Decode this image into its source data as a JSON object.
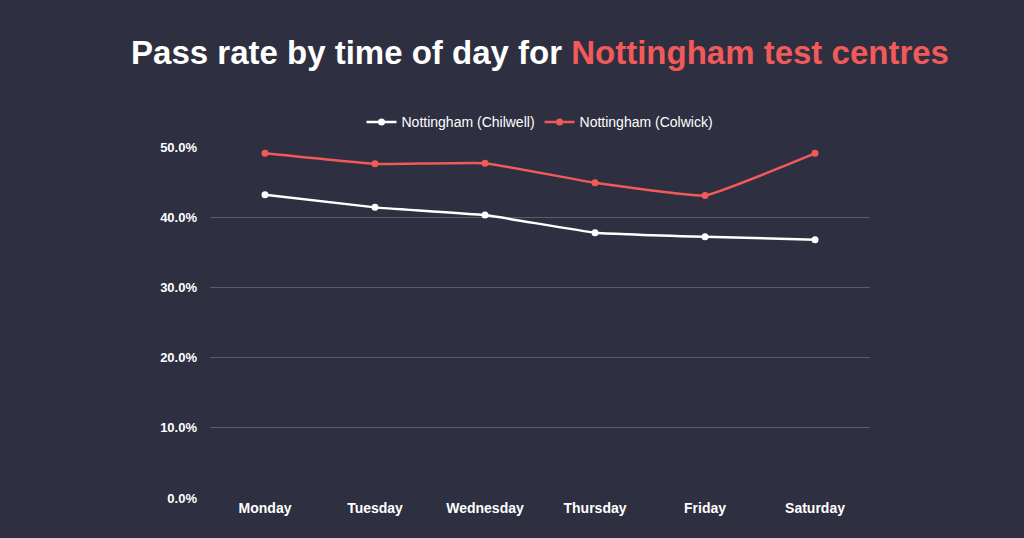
{
  "chart_data": {
    "type": "line",
    "title": [
      "Pass rate by time of day for",
      "Nottingham test centres"
    ],
    "categories": [
      "Monday",
      "Tuesday",
      "Wednesday",
      "Thursday",
      "Friday",
      "Saturday"
    ],
    "series": [
      {
        "name": "Nottingham (Chilwell)",
        "color": "#ffffff",
        "values": [
          43.2,
          41.4,
          40.3,
          37.8,
          37.2,
          36.8
        ]
      },
      {
        "name": "Nottingham (Colwick)",
        "color": "#f25a5a",
        "values": [
          49.1,
          47.6,
          47.7,
          44.9,
          43.1,
          49.1
        ]
      }
    ],
    "ylim": [
      0,
      50
    ],
    "yticks": [
      {
        "value": 0,
        "label": "0.0%"
      },
      {
        "value": 10,
        "label": "10.0%"
      },
      {
        "value": 20,
        "label": "20.0%"
      },
      {
        "value": 30,
        "label": "30.0%"
      },
      {
        "value": 40,
        "label": "40.0%"
      },
      {
        "value": 50,
        "label": "50.0%"
      }
    ],
    "grid": true,
    "legend": "top",
    "marker": "circle"
  }
}
